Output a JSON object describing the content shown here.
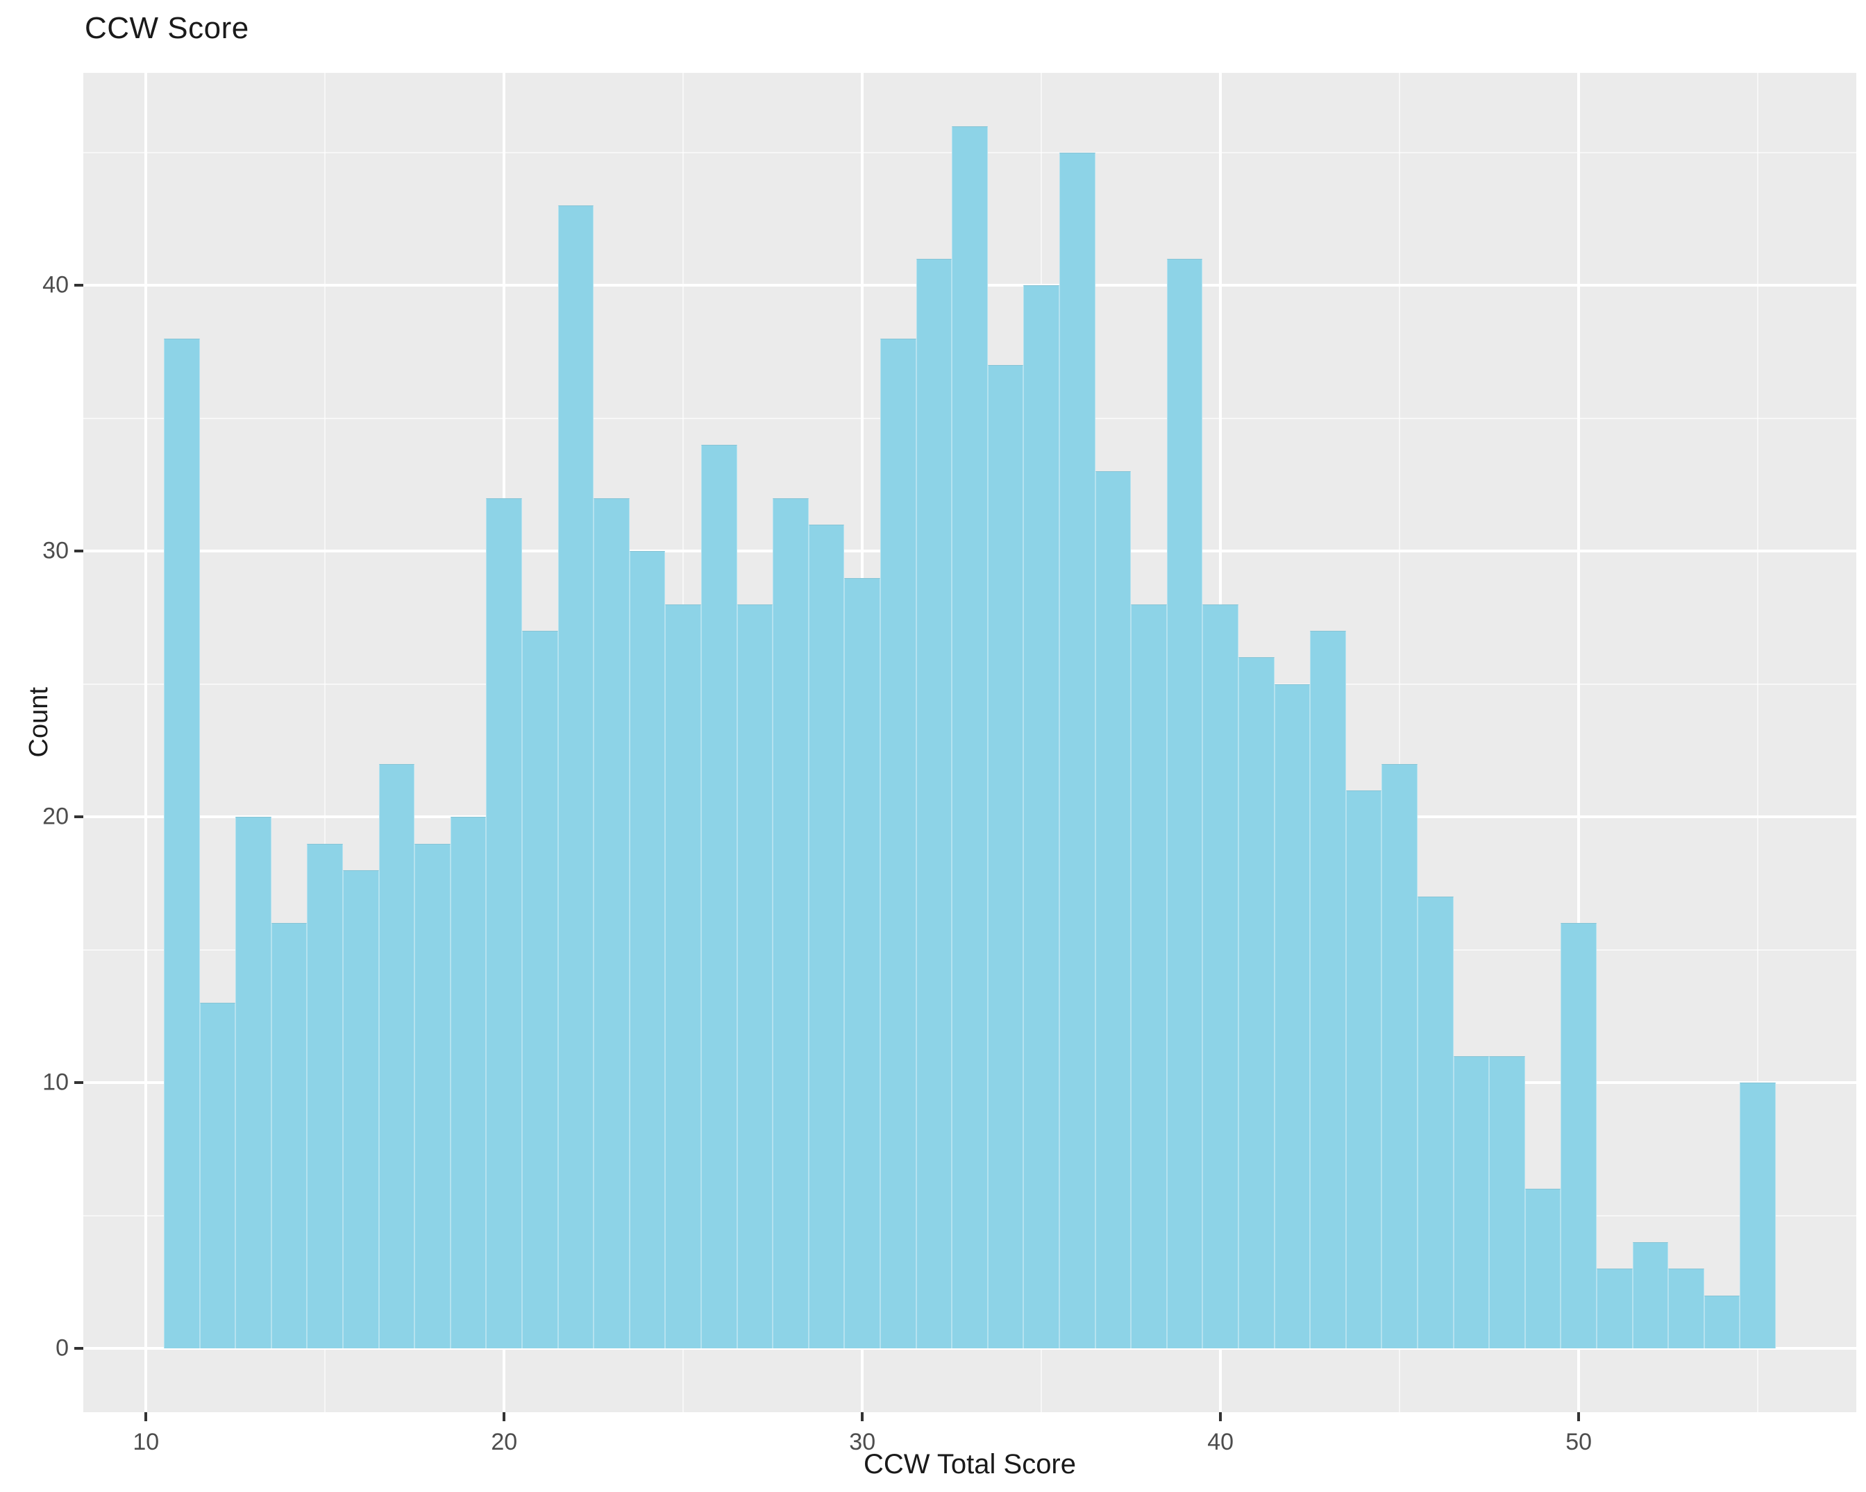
{
  "title": "CCW Score",
  "chart_data": {
    "type": "bar",
    "subtype": "histogram",
    "title": "CCW Score",
    "xlabel": "CCW Total Score",
    "ylabel": "Count",
    "bin_width": 1,
    "bin_centers": [
      11,
      12,
      13,
      14,
      15,
      16,
      17,
      18,
      19,
      20,
      21,
      22,
      23,
      24,
      25,
      26,
      27,
      28,
      29,
      30,
      31,
      32,
      33,
      34,
      35,
      36,
      37,
      38,
      39,
      40,
      41,
      42,
      43,
      44,
      45,
      46,
      47,
      48,
      49,
      50,
      51,
      52,
      53,
      54,
      55
    ],
    "values": [
      38,
      13,
      20,
      16,
      19,
      18,
      22,
      19,
      20,
      32,
      27,
      43,
      32,
      30,
      28,
      34,
      28,
      32,
      31,
      29,
      38,
      41,
      46,
      37,
      40,
      45,
      33,
      28,
      41,
      28,
      26,
      25,
      27,
      21,
      22,
      17,
      11,
      11,
      6,
      16,
      3,
      4,
      3,
      2,
      10
    ],
    "x_ticks": [
      10,
      20,
      30,
      40,
      50
    ],
    "y_ticks": [
      0,
      10,
      20,
      30,
      40
    ],
    "x_minor_gridlines": [
      15,
      25,
      35,
      45,
      55
    ],
    "y_minor_gridlines": [
      5,
      15,
      25,
      35,
      45
    ],
    "xlim": [
      8.25,
      57.75
    ],
    "ylim": [
      -2.4,
      48.0
    ],
    "grid": true,
    "legend": "none",
    "colors": {
      "bar_fill": "#8DD3E7",
      "panel_background": "#EBEBEB",
      "gridline": "#FFFFFF",
      "tick_label": "#4D4D4D",
      "axis_text": "#1A1A1A",
      "tick_mark": "#333333"
    }
  }
}
